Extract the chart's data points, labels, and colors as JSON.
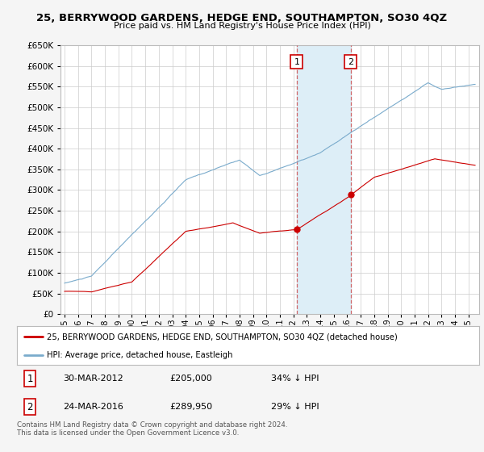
{
  "title": "25, BERRYWOOD GARDENS, HEDGE END, SOUTHAMPTON, SO30 4QZ",
  "subtitle": "Price paid vs. HM Land Registry's House Price Index (HPI)",
  "legend_red": "25, BERRYWOOD GARDENS, HEDGE END, SOUTHAMPTON, SO30 4QZ (detached house)",
  "legend_blue": "HPI: Average price, detached house, Eastleigh",
  "sale1_date": "30-MAR-2012",
  "sale1_price": "£205,000",
  "sale1_pct": "34% ↓ HPI",
  "sale2_date": "24-MAR-2016",
  "sale2_price": "£289,950",
  "sale2_pct": "29% ↓ HPI",
  "footnote": "Contains HM Land Registry data © Crown copyright and database right 2024.\nThis data is licensed under the Open Government Licence v3.0.",
  "ylim": [
    0,
    650000
  ],
  "yticks": [
    0,
    50000,
    100000,
    150000,
    200000,
    250000,
    300000,
    350000,
    400000,
    450000,
    500000,
    550000,
    600000,
    650000
  ],
  "fig_bg": "#f5f5f5",
  "plot_bg": "#ffffff",
  "red_color": "#cc0000",
  "blue_color": "#7aabcc",
  "shade_color": "#ddeef7",
  "sale1_year": 2012.25,
  "sale1_value": 205000,
  "sale2_year": 2016.25,
  "sale2_value": 289950
}
